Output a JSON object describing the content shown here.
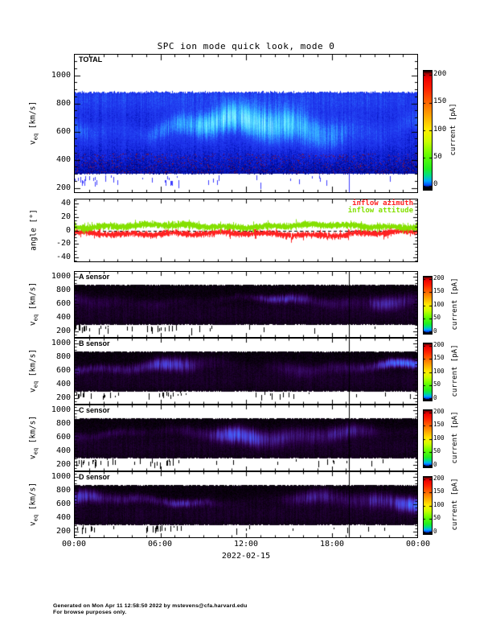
{
  "page": {
    "title": "SPC ion mode quick look, mode 0"
  },
  "footer": {
    "line1": "Generated on Mon Apr 11 12:58:50 2022 by mstevens@cfa.harvard.edu",
    "line2": "For browse purposes only."
  },
  "x_axis": {
    "tick_labels": [
      "00:00",
      "06:00",
      "12:00",
      "18:00",
      "00:00"
    ],
    "date_label": "2022-02-15",
    "major_tick_hours": 6,
    "minor_tick_hours": 1,
    "span_hours": 24
  },
  "y_axis_velocity": {
    "label_main": "v",
    "label_sub": "eq",
    "label_units": " [km/s]",
    "ticks": [
      200,
      400,
      600,
      800,
      1000
    ],
    "minor_step": 50
  },
  "y_axis_angle": {
    "label": "angle [°]",
    "ticks": [
      -40,
      -20,
      0,
      20,
      40
    ],
    "minor_step": 5
  },
  "colorbar": {
    "label": "current [pA]",
    "ticks": [
      0,
      50,
      100,
      150,
      200
    ],
    "vmin": -8,
    "vmax": 208,
    "gradient_stops": [
      [
        -8,
        "#000000"
      ],
      [
        -3,
        "#000018"
      ],
      [
        0,
        "#0044ff"
      ],
      [
        8,
        "#00aaff"
      ],
      [
        18,
        "#00dd88"
      ],
      [
        30,
        "#22ee22"
      ],
      [
        55,
        "#66ff00"
      ],
      [
        80,
        "#ccff00"
      ],
      [
        100,
        "#ffee00"
      ],
      [
        125,
        "#ffaa00"
      ],
      [
        150,
        "#ff6600"
      ],
      [
        175,
        "#ff2200"
      ],
      [
        195,
        "#ee0000"
      ],
      [
        202,
        "#bb0000"
      ],
      [
        206,
        "#330000"
      ],
      [
        208,
        "#000000"
      ]
    ]
  },
  "chart_data": [
    {
      "id": "total",
      "type": "heatmap",
      "label": "TOTAL",
      "yrange": [
        170,
        1146
      ],
      "band_kms": [
        300,
        880
      ],
      "peak_velocity_kms": [
        550,
        720
      ],
      "typical_current_pA": [
        5,
        45
      ],
      "units": "current [pA]",
      "description": "Total ion current spectrogram, blue background with bright cyan core near 550-720 km/s, red speckle noise 300-440 km/s, sparse blue dropouts 230-300 km/s, data gap line near 19:10",
      "colormap_stops": [
        [
          0,
          "#00006a"
        ],
        [
          3,
          "#0012b4"
        ],
        [
          7,
          "#1a2ce6"
        ],
        [
          12,
          "#2342f2"
        ],
        [
          18,
          "#2a79ff"
        ],
        [
          26,
          "#35b4ff"
        ],
        [
          34,
          "#52dcff"
        ],
        [
          44,
          "#8cf2ff"
        ],
        [
          58,
          "#c8ffff"
        ]
      ],
      "speckle_colors": [
        "#7a0f3c",
        "#5a1160",
        "#8c1420",
        "#3c0a8a"
      ],
      "dash_color": "#3b3bff",
      "gap_line_frac": 0.8,
      "render": {
        "seed": 11,
        "c0": 635,
        "c1": 48,
        "c2": 22,
        "cj": 26,
        "s0": 58,
        "s1": 18,
        "a0": 30,
        "noise": 5,
        "right_boost": 1.15,
        "speckle_p": 0.09
      }
    },
    {
      "id": "inflow-angles",
      "type": "line",
      "yrange": [
        -46,
        46
      ],
      "zero_line": true,
      "series": [
        {
          "name": "inflow azimuth",
          "color": "#ff2222",
          "mean_deg": -5,
          "spread_deg": 5,
          "range_deg": [
            -20,
            5
          ]
        },
        {
          "name": "inflow attitude",
          "color": "#84e000",
          "mean_deg": 7,
          "spread_deg": 5,
          "range_deg": [
            -2,
            20
          ]
        }
      ],
      "render": {
        "seed": 77
      }
    },
    {
      "id": "sensor-a",
      "type": "heatmap",
      "label": "A sensor",
      "yrange": [
        120,
        1070
      ],
      "band_kms": [
        300,
        880
      ],
      "peak_velocity_kms": [
        580,
        720
      ],
      "typical_current_pA": [
        0,
        20
      ],
      "units": "current [pA]",
      "description": "A sensor current spectrogram, black background with faint purple patches, brighter blue at end of day",
      "colormap_stops": [
        [
          0,
          "#000000"
        ],
        [
          1.5,
          "#0f0016"
        ],
        [
          4,
          "#270041"
        ],
        [
          8,
          "#3b1070"
        ],
        [
          13,
          "#482aaa"
        ],
        [
          19,
          "#4a3ed6"
        ],
        [
          26,
          "#4656f0"
        ],
        [
          36,
          "#3f7aff"
        ],
        [
          50,
          "#58a6ff"
        ]
      ],
      "dash_color": "#000000",
      "gap_line_frac": 0.8,
      "render": {
        "seed": 21,
        "c0": 650,
        "c1": 42,
        "c2": 18,
        "cj": 30,
        "s0": 46,
        "s1": 16,
        "a0": 10,
        "noise": 1.8,
        "right_boost": 2.1,
        "speckle_p": 0
      }
    },
    {
      "id": "sensor-b",
      "type": "heatmap",
      "label": "B sensor",
      "yrange": [
        120,
        1070
      ],
      "band_kms": [
        300,
        880
      ],
      "peak_velocity_kms": [
        580,
        750
      ],
      "typical_current_pA": [
        0,
        28
      ],
      "units": "current [pA]",
      "description": "B sensor current spectrogram, purple and blue vertical streaks 500-800 km/s on black",
      "colormap_stops": [
        [
          0,
          "#000000"
        ],
        [
          1.5,
          "#0f0016"
        ],
        [
          4,
          "#270041"
        ],
        [
          8,
          "#3b1070"
        ],
        [
          13,
          "#482aaa"
        ],
        [
          19,
          "#4a3ed6"
        ],
        [
          26,
          "#4656f0"
        ],
        [
          36,
          "#3f7aff"
        ],
        [
          50,
          "#58a6ff"
        ]
      ],
      "dash_color": "#000000",
      "gap_line_frac": 0.8,
      "render": {
        "seed": 31,
        "c0": 660,
        "c1": 45,
        "c2": 20,
        "cj": 30,
        "s0": 52,
        "s1": 18,
        "a0": 16,
        "noise": 1.8,
        "right_boost": 1.4,
        "speckle_p": 0
      }
    },
    {
      "id": "sensor-c",
      "type": "heatmap",
      "label": "C sensor",
      "yrange": [
        120,
        1070
      ],
      "band_kms": [
        300,
        880
      ],
      "peak_velocity_kms": [
        560,
        750
      ],
      "typical_current_pA": [
        0,
        34
      ],
      "units": "current [pA]",
      "description": "C sensor current spectrogram, brightest blue streaks of the four sensors",
      "colormap_stops": [
        [
          0,
          "#000000"
        ],
        [
          1.5,
          "#0f0016"
        ],
        [
          4,
          "#270041"
        ],
        [
          8,
          "#3b1070"
        ],
        [
          13,
          "#482aaa"
        ],
        [
          19,
          "#4a3ed6"
        ],
        [
          26,
          "#4656f0"
        ],
        [
          36,
          "#3f7aff"
        ],
        [
          50,
          "#58a6ff"
        ]
      ],
      "dash_color": "#000000",
      "gap_line_frac": 0.8,
      "render": {
        "seed": 41,
        "c0": 645,
        "c1": 48,
        "c2": 20,
        "cj": 32,
        "s0": 55,
        "s1": 18,
        "a0": 20,
        "noise": 1.8,
        "right_boost": 1.3,
        "speckle_p": 0
      }
    },
    {
      "id": "sensor-d",
      "type": "heatmap",
      "label": "D sensor",
      "yrange": [
        120,
        1070
      ],
      "band_kms": [
        300,
        880
      ],
      "peak_velocity_kms": [
        580,
        740
      ],
      "typical_current_pA": [
        0,
        26
      ],
      "units": "current [pA]",
      "description": "D sensor current spectrogram, purple patches with blue streaks, brighter cluster near 20:00-23:00",
      "colormap_stops": [
        [
          0,
          "#000000"
        ],
        [
          1.5,
          "#0f0016"
        ],
        [
          4,
          "#270041"
        ],
        [
          8,
          "#3b1070"
        ],
        [
          13,
          "#482aaa"
        ],
        [
          19,
          "#4a3ed6"
        ],
        [
          26,
          "#4656f0"
        ],
        [
          36,
          "#3f7aff"
        ],
        [
          50,
          "#58a6ff"
        ]
      ],
      "dash_color": "#000000",
      "gap_line_frac": 0.8,
      "render": {
        "seed": 51,
        "c0": 655,
        "c1": 44,
        "c2": 19,
        "cj": 30,
        "s0": 50,
        "s1": 17,
        "a0": 15,
        "noise": 1.8,
        "right_boost": 1.7,
        "speckle_p": 0
      }
    }
  ]
}
